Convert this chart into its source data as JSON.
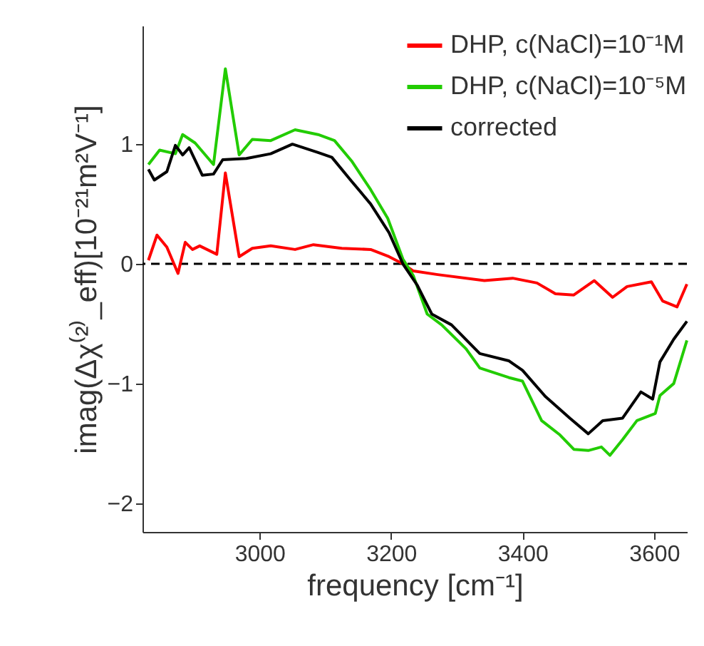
{
  "chart_data": {
    "type": "line",
    "xlabel": "frequency [cm⁻¹]",
    "ylabel": "imag(Δχ⁽²⁾_eff)[10⁻²¹m²V⁻¹]",
    "xlim": [
      2822,
      3650
    ],
    "xticks": [
      3000,
      3200,
      3400,
      3600
    ],
    "ylim": [
      -2.24,
      1.99
    ],
    "yticks": [
      -2,
      -1,
      0,
      1
    ],
    "grid": false,
    "legend": "top right",
    "marker": "none",
    "line_style": "solid",
    "ref_lines": [
      {
        "axis": "y",
        "value": 0,
        "color": "#000000",
        "line_style": "dashed"
      }
    ],
    "series": [
      {
        "name": "DHP, c(NaCl)=10⁻¹M",
        "color": "#ff0000",
        "x": [
          2831,
          2844,
          2859,
          2876,
          2887,
          2898,
          2909,
          2935,
          2948,
          2969,
          2989,
          3017,
          3054,
          3082,
          3125,
          3169,
          3197,
          3218,
          3234,
          3271,
          3342,
          3385,
          3422,
          3450,
          3478,
          3509,
          3537,
          3559,
          3596,
          3613,
          3635,
          3650
        ],
        "values": [
          0.03,
          0.24,
          0.14,
          -0.08,
          0.18,
          0.12,
          0.15,
          0.08,
          0.76,
          0.06,
          0.13,
          0.15,
          0.12,
          0.16,
          0.13,
          0.12,
          0.06,
          0.0,
          -0.06,
          -0.09,
          -0.14,
          -0.12,
          -0.16,
          -0.25,
          -0.26,
          -0.14,
          -0.28,
          -0.19,
          -0.15,
          -0.31,
          -0.36,
          -0.17
        ]
      },
      {
        "name": "DHP, c(NaCl)=10⁻⁵M",
        "color": "#22cc00",
        "x": [
          2831,
          2848,
          2872,
          2883,
          2902,
          2930,
          2948,
          2969,
          2989,
          3017,
          3054,
          3089,
          3114,
          3140,
          3169,
          3195,
          3218,
          3234,
          3255,
          3277,
          3314,
          3335,
          3379,
          3400,
          3429,
          3457,
          3478,
          3500,
          3520,
          3533,
          3552,
          3574,
          3602,
          3609,
          3630,
          3650
        ],
        "values": [
          0.83,
          0.95,
          0.92,
          1.08,
          1.01,
          0.83,
          1.63,
          0.91,
          1.04,
          1.03,
          1.12,
          1.08,
          1.03,
          0.86,
          0.62,
          0.38,
          0.04,
          -0.1,
          -0.42,
          -0.51,
          -0.71,
          -0.87,
          -0.95,
          -0.98,
          -1.31,
          -1.43,
          -1.55,
          -1.56,
          -1.53,
          -1.6,
          -1.47,
          -1.31,
          -1.25,
          -1.1,
          -1.0,
          -0.64
        ]
      },
      {
        "name": "corrected",
        "color": "#000000",
        "x": [
          2831,
          2840,
          2859,
          2872,
          2883,
          2893,
          2913,
          2930,
          2944,
          2980,
          3017,
          3050,
          3089,
          3110,
          3140,
          3169,
          3197,
          3218,
          3240,
          3262,
          3292,
          3335,
          3379,
          3400,
          3435,
          3472,
          3500,
          3522,
          3552,
          3580,
          3598,
          3609,
          3630,
          3650
        ],
        "values": [
          0.79,
          0.7,
          0.77,
          0.99,
          0.91,
          0.97,
          0.74,
          0.75,
          0.87,
          0.88,
          0.92,
          1.0,
          0.93,
          0.89,
          0.69,
          0.5,
          0.26,
          0.0,
          -0.18,
          -0.42,
          -0.51,
          -0.75,
          -0.81,
          -0.89,
          -1.11,
          -1.29,
          -1.42,
          -1.31,
          -1.29,
          -1.07,
          -1.13,
          -0.82,
          -0.63,
          -0.48
        ]
      }
    ]
  }
}
